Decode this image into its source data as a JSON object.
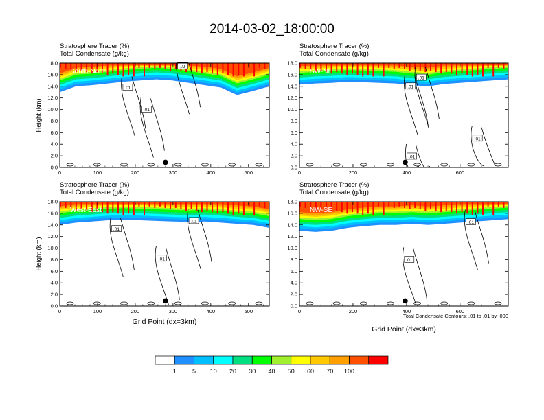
{
  "title": "2014-03-02_18:00:00",
  "colors": [
    "#ffffff",
    "#1e90ff",
    "#00bfff",
    "#00ffff",
    "#00e080",
    "#00ff00",
    "#a0f030",
    "#ffff00",
    "#ffc800",
    "#ffa000",
    "#ff5000",
    "#ff0000"
  ],
  "legend": {
    "labels": [
      "1",
      "5",
      "10",
      "20",
      "30",
      "40",
      "50",
      "60",
      "70",
      "100"
    ]
  },
  "contour_note": "Total Condensate Contours: .01 to .01 by .000",
  "chart_data": [
    {
      "type": "heatmap",
      "name_label": "South-North",
      "title_line1": "Stratosphere Tracer   (%)",
      "title_line2": "Total Condensate   (g/kg)",
      "ylabel": "Height (km)",
      "xlabel": "",
      "xlim": [
        0,
        555
      ],
      "ylim": [
        0,
        18
      ],
      "xticks": [
        "0",
        "100",
        "200",
        "300",
        "400",
        "500"
      ],
      "yticks": [
        "0.0",
        "2.0",
        "4.0",
        "6.0",
        "8.0",
        "10.0",
        "12.0",
        "14.0",
        "16.0",
        "18.0"
      ],
      "contour_labels": [
        ".01",
        ".01",
        ".01"
      ],
      "contour_x": [
        325,
        180,
        230
      ],
      "contour_y": [
        17.5,
        13.8,
        10.0
      ],
      "marker": {
        "x": 280,
        "y": 0.9
      },
      "tracer_base": [
        13.0,
        14.0,
        14.2,
        14.5,
        14.8,
        15.0,
        15.2,
        15.0,
        14.6,
        14.2,
        13.8,
        12.5,
        13.2,
        14.0
      ]
    },
    {
      "type": "heatmap",
      "name_label": "SW-NE",
      "title_line1": "Stratosphere Tracer   (%)",
      "title_line2": "Total Condensate   (g/kg)",
      "ylabel": "",
      "xlabel": "",
      "xlim": [
        0,
        780
      ],
      "ylim": [
        0,
        18
      ],
      "xticks": [
        "0",
        "200",
        "400",
        "600"
      ],
      "yticks": [
        "0.0",
        "2.0",
        "4.0",
        "6.0",
        "8.0",
        "10.0",
        "12.0",
        "14.0",
        "16.0",
        "18.0"
      ],
      "contour_labels": [
        ".01",
        ".01",
        ".01",
        ".01"
      ],
      "contour_x": [
        455,
        415,
        665,
        420
      ],
      "contour_y": [
        15.5,
        14.0,
        5.0,
        1.9
      ],
      "marker": {
        "x": 395,
        "y": 0.9
      },
      "tracer_base": [
        14.3,
        14.5,
        14.6,
        14.8,
        14.7,
        14.6,
        14.5,
        14.2,
        14.0,
        14.4,
        14.6,
        14.8,
        15.0,
        15.2
      ]
    },
    {
      "type": "heatmap",
      "name_label": "West-East",
      "title_line1": "Stratosphere Tracer   (%)",
      "title_line2": "Total Condensate   (g/kg)",
      "ylabel": "Height (km)",
      "xlabel": "Grid Point (dx=3km)",
      "xlim": [
        0,
        555
      ],
      "ylim": [
        0,
        18
      ],
      "xticks": [
        "0",
        "100",
        "200",
        "300",
        "400",
        "500"
      ],
      "yticks": [
        "0.0",
        "2.0",
        "4.0",
        "6.0",
        "8.0",
        "10.0",
        "12.0",
        "14.0",
        "16.0",
        "18.0"
      ],
      "contour_labels": [
        ".01",
        ".01",
        ".01"
      ],
      "contour_x": [
        150,
        355,
        270
      ],
      "contour_y": [
        13.3,
        14.7,
        8.2
      ],
      "marker": {
        "x": 280,
        "y": 0.9
      },
      "tracer_base": [
        14.0,
        14.4,
        14.6,
        14.8,
        14.9,
        14.8,
        14.7,
        14.6,
        14.5,
        14.6,
        14.4,
        14.2,
        14.0,
        13.5
      ]
    },
    {
      "type": "heatmap",
      "name_label": "NW-SE",
      "title_line1": "Stratosphere Tracer   (%)",
      "title_line2": "Total Condensate   (g/kg)",
      "ylabel": "",
      "xlabel": "Grid Point (dx=3km)",
      "xlim": [
        0,
        780
      ],
      "ylim": [
        0,
        18
      ],
      "xticks": [
        "0",
        "200",
        "400",
        "600"
      ],
      "yticks": [
        "0.0",
        "2.0",
        "4.0",
        "6.0",
        "8.0",
        "10.0",
        "12.0",
        "14.0",
        "16.0",
        "18.0"
      ],
      "contour_labels": [
        ".01",
        ".01"
      ],
      "contour_x": [
        640,
        410
      ],
      "contour_y": [
        14.5,
        8.0
      ],
      "marker": {
        "x": 395,
        "y": 0.9
      },
      "tracer_base": [
        13.0,
        12.8,
        13.0,
        13.5,
        13.8,
        14.0,
        14.0,
        14.2,
        14.0,
        14.2,
        14.4,
        14.6,
        14.8,
        15.0
      ]
    }
  ]
}
